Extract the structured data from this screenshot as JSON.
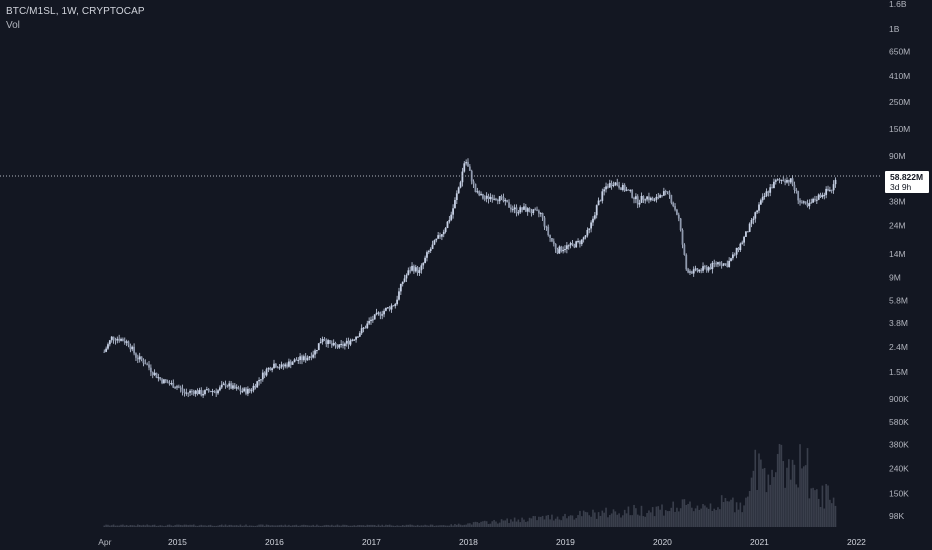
{
  "legend": {
    "title": "BTC/M1SL, 1W, CRYPTOCAP",
    "volume_label": "Vol"
  },
  "last_price": {
    "value_label": "58.822M",
    "countdown": "3d 9h"
  },
  "colors": {
    "background": "#131722",
    "candle": "#c8d2e6",
    "volume": "#3a3f4c",
    "price_line": "#b2b5be",
    "text": "#b2b5be"
  },
  "chart_data": {
    "type": "candlestick",
    "scale": "log",
    "price_axis_ticks": [
      "1.6B",
      "1B",
      "650M",
      "410M",
      "250M",
      "150M",
      "90M",
      "58.822M",
      "38M",
      "24M",
      "14M",
      "9M",
      "5.8M",
      "3.8M",
      "2.4M",
      "1.5M",
      "900K",
      "580K",
      "380K",
      "240K",
      "150K",
      "98K"
    ],
    "time_axis_ticks": [
      "Apr",
      "2015",
      "2016",
      "2017",
      "2018",
      "2019",
      "2020",
      "2021",
      "2022"
    ],
    "last_value": 58822000,
    "series_close": [
      [
        2014.25,
        2200000
      ],
      [
        2014.33,
        2900000
      ],
      [
        2014.42,
        2800000
      ],
      [
        2014.5,
        2600000
      ],
      [
        2014.58,
        2000000
      ],
      [
        2014.67,
        1800000
      ],
      [
        2014.75,
        1500000
      ],
      [
        2014.83,
        1300000
      ],
      [
        2014.92,
        1200000
      ],
      [
        2015.0,
        1150000
      ],
      [
        2015.08,
        1000000
      ],
      [
        2015.17,
        1050000
      ],
      [
        2015.25,
        1000000
      ],
      [
        2015.33,
        1050000
      ],
      [
        2015.42,
        1050000
      ],
      [
        2015.5,
        1200000
      ],
      [
        2015.58,
        1100000
      ],
      [
        2015.67,
        1050000
      ],
      [
        2015.75,
        1050000
      ],
      [
        2015.83,
        1250000
      ],
      [
        2015.92,
        1550000
      ],
      [
        2016.0,
        1750000
      ],
      [
        2016.08,
        1650000
      ],
      [
        2016.17,
        1800000
      ],
      [
        2016.25,
        1900000
      ],
      [
        2016.33,
        1950000
      ],
      [
        2016.42,
        2200000
      ],
      [
        2016.5,
        2900000
      ],
      [
        2016.58,
        2500000
      ],
      [
        2016.67,
        2400000
      ],
      [
        2016.75,
        2600000
      ],
      [
        2016.83,
        2900000
      ],
      [
        2016.92,
        3400000
      ],
      [
        2017.0,
        4000000
      ],
      [
        2017.08,
        4500000
      ],
      [
        2017.17,
        5000000
      ],
      [
        2017.25,
        5500000
      ],
      [
        2017.33,
        8500000
      ],
      [
        2017.42,
        11000000
      ],
      [
        2017.5,
        10000000
      ],
      [
        2017.58,
        14000000
      ],
      [
        2017.67,
        18000000
      ],
      [
        2017.75,
        22000000
      ],
      [
        2017.83,
        30000000
      ],
      [
        2017.92,
        55000000
      ],
      [
        2017.97,
        85000000
      ],
      [
        2018.02,
        65000000
      ],
      [
        2018.08,
        45000000
      ],
      [
        2018.17,
        40000000
      ],
      [
        2018.25,
        42000000
      ],
      [
        2018.33,
        40000000
      ],
      [
        2018.42,
        35000000
      ],
      [
        2018.5,
        32000000
      ],
      [
        2018.58,
        33000000
      ],
      [
        2018.67,
        31000000
      ],
      [
        2018.75,
        30000000
      ],
      [
        2018.83,
        20000000
      ],
      [
        2018.92,
        15000000
      ],
      [
        2019.0,
        16000000
      ],
      [
        2019.08,
        16500000
      ],
      [
        2019.17,
        18000000
      ],
      [
        2019.25,
        22000000
      ],
      [
        2019.33,
        35000000
      ],
      [
        2019.42,
        50000000
      ],
      [
        2019.5,
        55000000
      ],
      [
        2019.58,
        50000000
      ],
      [
        2019.67,
        45000000
      ],
      [
        2019.75,
        38000000
      ],
      [
        2019.83,
        42000000
      ],
      [
        2019.92,
        38000000
      ],
      [
        2020.0,
        45000000
      ],
      [
        2020.08,
        42000000
      ],
      [
        2020.17,
        28000000
      ],
      [
        2020.25,
        10500000
      ],
      [
        2020.33,
        10000000
      ],
      [
        2020.42,
        10500000
      ],
      [
        2020.5,
        11000000
      ],
      [
        2020.58,
        12000000
      ],
      [
        2020.67,
        11500000
      ],
      [
        2020.75,
        14000000
      ],
      [
        2020.83,
        18000000
      ],
      [
        2020.92,
        25000000
      ],
      [
        2021.0,
        35000000
      ],
      [
        2021.08,
        45000000
      ],
      [
        2021.17,
        55000000
      ],
      [
        2021.25,
        58000000
      ],
      [
        2021.33,
        56000000
      ],
      [
        2021.42,
        38000000
      ],
      [
        2021.5,
        34000000
      ],
      [
        2021.58,
        40000000
      ],
      [
        2021.67,
        45000000
      ],
      [
        2021.75,
        48000000
      ],
      [
        2021.8,
        58822000
      ]
    ]
  }
}
